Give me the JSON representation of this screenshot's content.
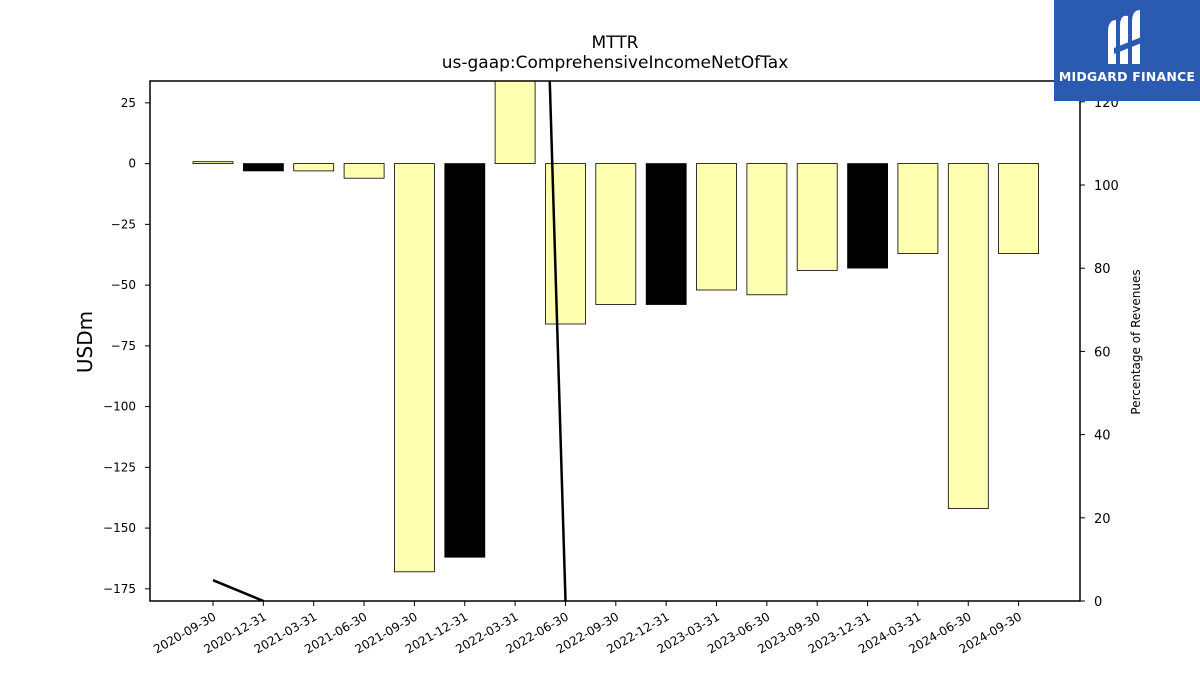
{
  "chart_data": {
    "type": "bar",
    "title": "MTTR",
    "subtitle": "us-gaap:ComprehensiveIncomeNetOfTax",
    "ylabel": "USDm",
    "y2label": "Percentage of Revenues",
    "ylim": [
      -180,
      34
    ],
    "y2lim": [
      0,
      125
    ],
    "yticks": [
      25,
      0,
      -25,
      -50,
      -75,
      -100,
      -125,
      -150,
      -175
    ],
    "y2ticks": [
      0,
      20,
      40,
      60,
      80,
      100,
      120
    ],
    "categories": [
      "2020-09-30",
      "2020-12-31",
      "2021-03-31",
      "2021-06-30",
      "2021-09-30",
      "2021-12-31",
      "2022-03-31",
      "2022-06-30",
      "2022-09-30",
      "2022-12-31",
      "2023-03-31",
      "2023-06-30",
      "2023-09-30",
      "2023-12-31",
      "2024-03-31",
      "2024-06-30",
      "2024-09-30"
    ],
    "values": [
      0.8,
      -3,
      -3,
      -6,
      -168,
      -162,
      34,
      -66,
      -58,
      -58,
      -52,
      -54,
      -44,
      -43,
      -37,
      -142,
      -37
    ],
    "bar_colors": [
      "#ffffb2",
      "#000000",
      "#ffffb2",
      "#ffffb2",
      "#ffffb2",
      "#000000",
      "#ffffb2",
      "#ffffb2",
      "#ffffb2",
      "#000000",
      "#ffffb2",
      "#ffffb2",
      "#ffffb2",
      "#000000",
      "#ffffb2",
      "#ffffb2",
      "#ffffb2"
    ],
    "pct_line": [
      5,
      0,
      null,
      null,
      null,
      null,
      400,
      0,
      null,
      null,
      null,
      null,
      null,
      null,
      null,
      null,
      null
    ],
    "grid": false,
    "legend": "none"
  },
  "logo": {
    "text": "MIDGARD FINANCE"
  }
}
